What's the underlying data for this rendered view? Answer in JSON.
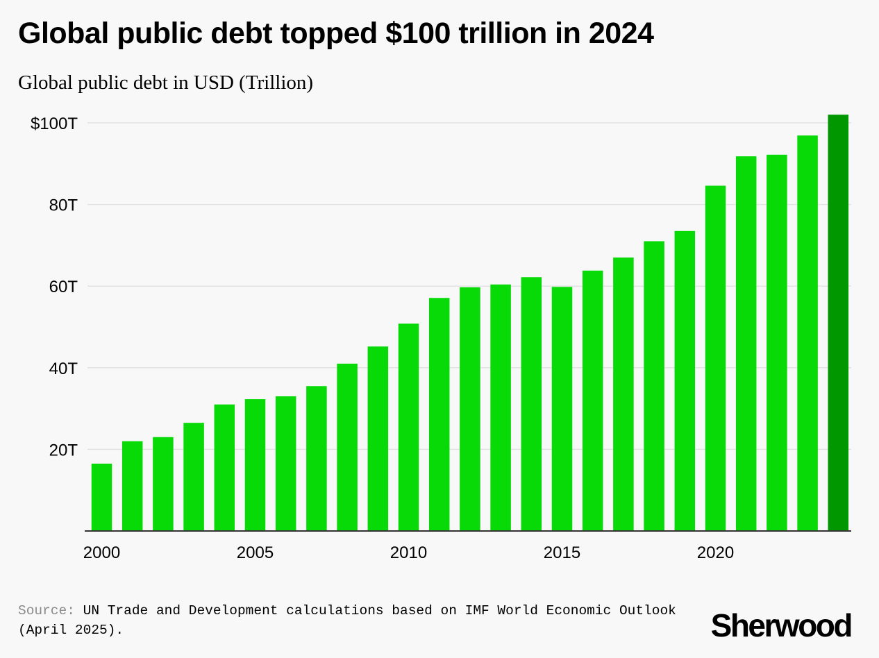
{
  "title": "Global public debt topped $100 trillion in 2024",
  "subtitle": "Global public debt in USD (Trillion)",
  "chart_data": {
    "type": "bar",
    "title": "Global public debt topped $100 trillion in 2024",
    "ylabel": "Global public debt in USD (Trillion)",
    "xlabel": "",
    "categories": [
      2000,
      2001,
      2002,
      2003,
      2004,
      2005,
      2006,
      2007,
      2008,
      2009,
      2010,
      2011,
      2012,
      2013,
      2014,
      2015,
      2016,
      2017,
      2018,
      2019,
      2020,
      2021,
      2022,
      2023,
      2024
    ],
    "values": [
      16.5,
      22,
      23,
      26.5,
      31,
      32.3,
      33,
      35.5,
      41,
      45.2,
      50.8,
      57.1,
      59.7,
      60.4,
      62.2,
      59.8,
      63.8,
      67,
      71,
      73.5,
      84.6,
      91.8,
      92.2,
      96.9,
      102
    ],
    "highlight_index": 24,
    "colors": {
      "bar": "#07da07",
      "highlight": "#009700",
      "grid": "#e2e2e2",
      "axis": "#333333"
    },
    "ylim": [
      0,
      100
    ],
    "y_ticks": [
      {
        "value": 20,
        "label": "20T"
      },
      {
        "value": 40,
        "label": "40T"
      },
      {
        "value": 60,
        "label": "60T"
      },
      {
        "value": 80,
        "label": "80T"
      },
      {
        "value": 100,
        "label": "$100T"
      }
    ],
    "x_ticks": [
      {
        "value": 2000,
        "label": "2000"
      },
      {
        "value": 2005,
        "label": "2005"
      },
      {
        "value": 2010,
        "label": "2010"
      },
      {
        "value": 2015,
        "label": "2015"
      },
      {
        "value": 2020,
        "label": "2020"
      }
    ],
    "grid": true
  },
  "source": {
    "label": "Source:",
    "text": "UN Trade and Development calculations based on IMF World Economic Outlook (April 2025)."
  },
  "brand": "Sherwood"
}
